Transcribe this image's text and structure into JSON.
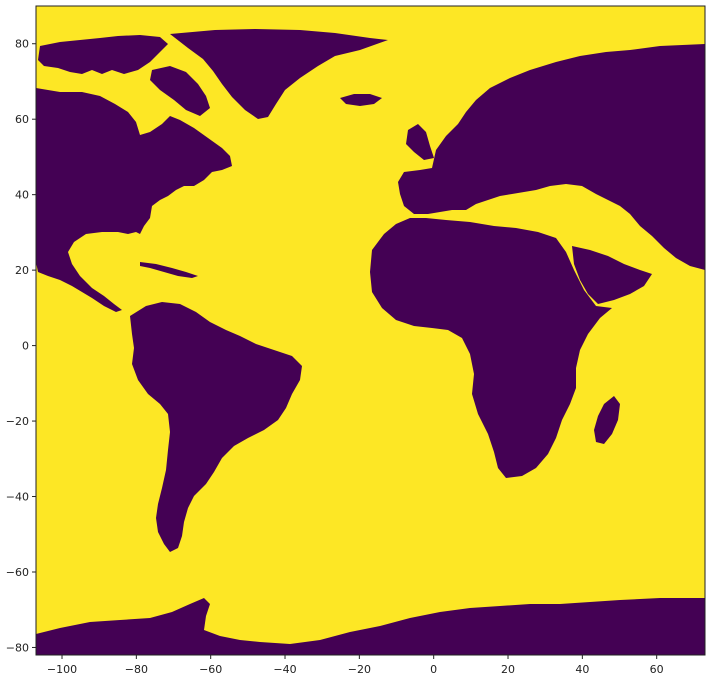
{
  "chart_data": {
    "type": "heatmap",
    "title": "",
    "xlabel": "",
    "ylabel": "",
    "xlim": [
      -107,
      73
    ],
    "ylim": [
      -82,
      90
    ],
    "x_ticks": [
      -100,
      -80,
      -60,
      -40,
      -20,
      0,
      20,
      40,
      60
    ],
    "y_ticks": [
      80,
      60,
      40,
      20,
      0,
      -20,
      -40,
      -60,
      -80
    ],
    "x_tick_labels": [
      "−100",
      "−80",
      "−60",
      "−40",
      "−20",
      "0",
      "20",
      "40",
      "60"
    ],
    "y_tick_labels": [
      "80",
      "60",
      "40",
      "20",
      "0",
      "−20",
      "−40",
      "−60",
      "−80"
    ],
    "colormap": "viridis",
    "values_shown": [
      0,
      1
    ],
    "legend": "none",
    "grid": false,
    "colors": {
      "land": "#440154",
      "ocean": "#fde725",
      "axis": "#222222",
      "background": "#ffffff"
    }
  }
}
